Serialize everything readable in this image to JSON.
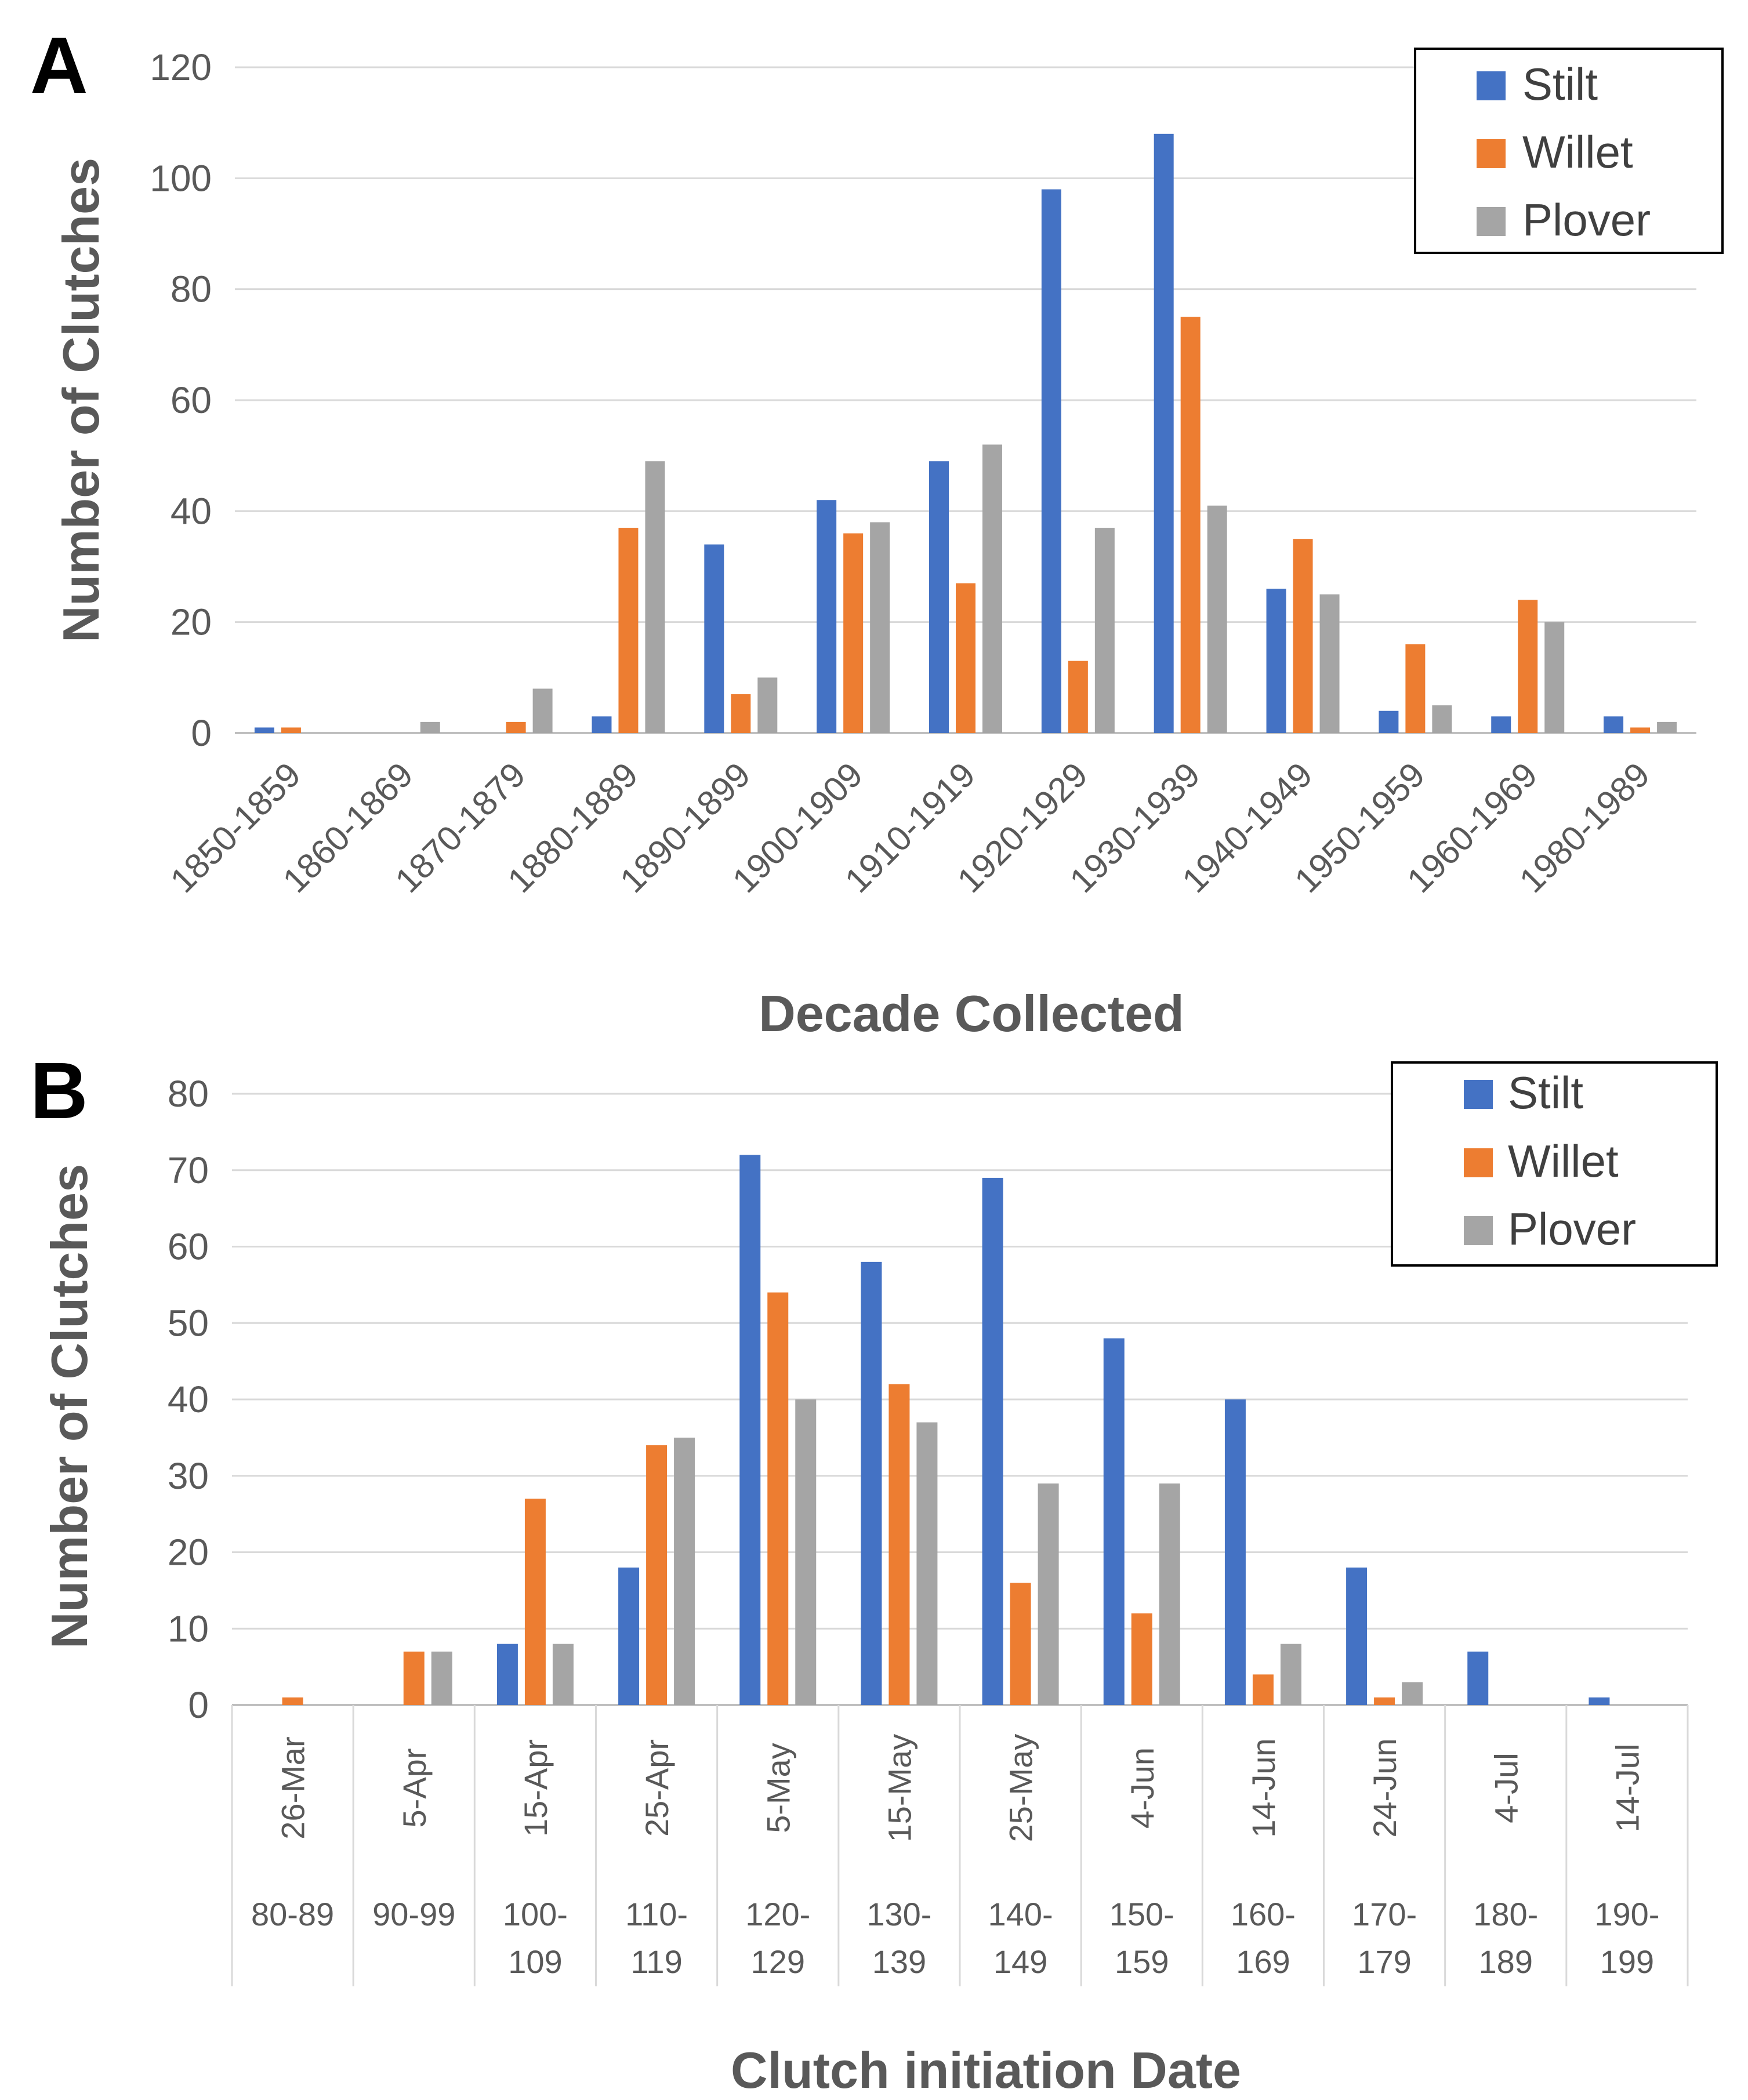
{
  "colors": {
    "Stilt": "#4472c4",
    "Willet": "#ed7d31",
    "Plover": "#a5a5a5"
  },
  "chart_data": [
    {
      "panel_label": "A",
      "type": "bar",
      "xlabel": "Decade Collected",
      "ylabel": "Number of Clutches",
      "ylim": [
        0,
        120
      ],
      "yticks": [
        0,
        20,
        40,
        60,
        80,
        100,
        120
      ],
      "grid": true,
      "legend": "top-right",
      "categories": [
        "1850-1859",
        "1860-1869",
        "1870-1879",
        "1880-1889",
        "1890-1899",
        "1900-1909",
        "1910-1919",
        "1920-1929",
        "1930-1939",
        "1940-1949",
        "1950-1959",
        "1960-1969",
        "1980-1989"
      ],
      "series": [
        {
          "name": "Stilt",
          "values": [
            1,
            0,
            0,
            3,
            34,
            42,
            49,
            98,
            108,
            26,
            4,
            3,
            3
          ]
        },
        {
          "name": "Willet",
          "values": [
            1,
            0,
            2,
            37,
            7,
            36,
            27,
            13,
            75,
            35,
            16,
            24,
            1
          ]
        },
        {
          "name": "Plover",
          "values": [
            0,
            2,
            8,
            49,
            10,
            38,
            52,
            37,
            41,
            25,
            5,
            20,
            2
          ]
        }
      ]
    },
    {
      "panel_label": "B",
      "type": "bar",
      "xlabel": "Clutch initiation Date",
      "ylabel": "Number of Clutches",
      "ylim": [
        0,
        80
      ],
      "yticks": [
        0,
        10,
        20,
        30,
        40,
        50,
        60,
        70,
        80
      ],
      "grid": true,
      "legend": "top-right",
      "categories": [
        "26-Mar",
        "5-Apr",
        "15-Apr",
        "25-Apr",
        "5-May",
        "15-May",
        "25-May",
        "4-Jun",
        "14-Jun",
        "24-Jun",
        "4-Jul",
        "14-Jul"
      ],
      "day_ranges": [
        [
          "80-89"
        ],
        [
          "90-99"
        ],
        [
          "100-",
          "109"
        ],
        [
          "110-",
          "119"
        ],
        [
          "120-",
          "129"
        ],
        [
          "130-",
          "139"
        ],
        [
          "140-",
          "149"
        ],
        [
          "150-",
          "159"
        ],
        [
          "160-",
          "169"
        ],
        [
          "170-",
          "179"
        ],
        [
          "180-",
          "189"
        ],
        [
          "190-",
          "199"
        ]
      ],
      "series": [
        {
          "name": "Stilt",
          "values": [
            0,
            0,
            8,
            18,
            72,
            58,
            69,
            48,
            40,
            18,
            7,
            1
          ]
        },
        {
          "name": "Willet",
          "values": [
            1,
            7,
            27,
            34,
            54,
            42,
            16,
            12,
            4,
            1,
            0,
            0
          ]
        },
        {
          "name": "Plover",
          "values": [
            0,
            7,
            8,
            35,
            40,
            37,
            29,
            29,
            8,
            3,
            0,
            0
          ]
        }
      ]
    }
  ]
}
